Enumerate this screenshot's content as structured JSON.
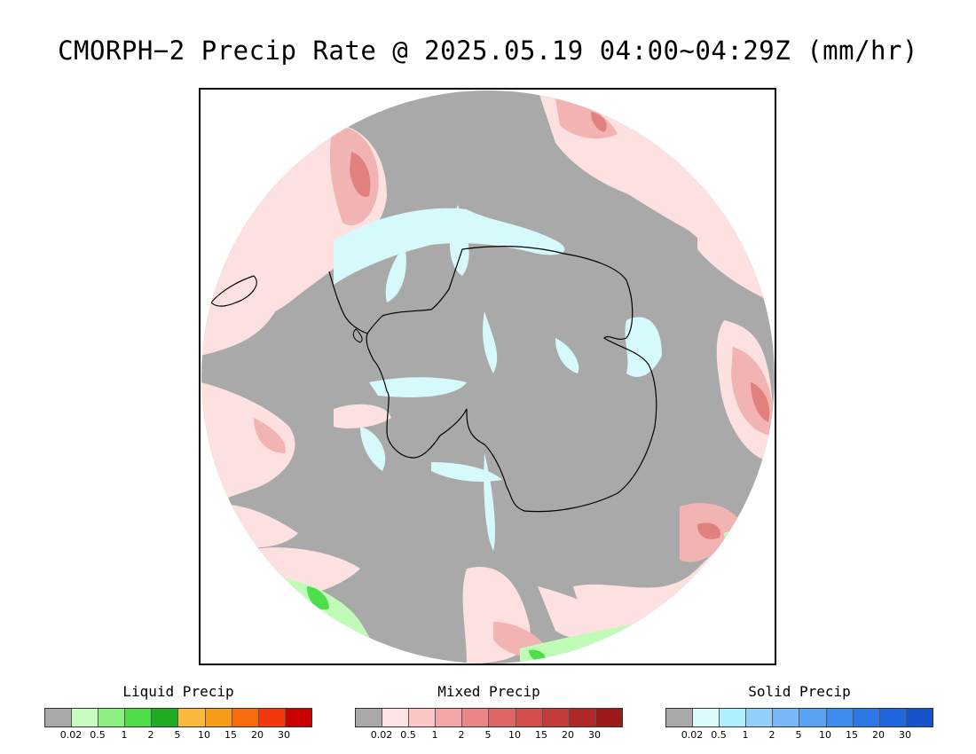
{
  "title": "CMORPH−2 Precip Rate @ 2025.05.19 04:00~04:29Z (mm/hr)",
  "legends": [
    {
      "title": "Liquid Precip",
      "colors": [
        "#a9a9a9",
        "#c8fcc0",
        "#8ef083",
        "#4ede4a",
        "#1fab22",
        "#f8b93c",
        "#f89b1a",
        "#f86c10",
        "#f43a0c",
        "#c80000"
      ],
      "ticks": [
        "0.02",
        "0.5",
        "1",
        "2",
        "5",
        "10",
        "15",
        "20",
        "30"
      ]
    },
    {
      "title": "Mixed Precip",
      "colors": [
        "#a9a9a9",
        "#fde3e3",
        "#fbc6c6",
        "#f4a5a5",
        "#ec8585",
        "#e06666",
        "#d44e4e",
        "#c43b3b",
        "#b02727",
        "#9c1a1a"
      ],
      "ticks": [
        "0.02",
        "0.5",
        "1",
        "2",
        "5",
        "10",
        "15",
        "20",
        "30"
      ]
    },
    {
      "title": "Solid Precip",
      "colors": [
        "#a9a9a9",
        "#dcfcfc",
        "#aef0fa",
        "#92d0fa",
        "#78b8f6",
        "#5aa2f2",
        "#3e8cee",
        "#2e78e6",
        "#1f66dc",
        "#1454c8"
      ],
      "ticks": [
        "0.02",
        "0.5",
        "1",
        "2",
        "5",
        "10",
        "15",
        "20",
        "30"
      ]
    }
  ],
  "map": {
    "projection": "south polar stereographic",
    "colors": {
      "no_precip": "#a9a9a9",
      "mixed_light": "#fde0e0",
      "mixed_mid": "#f2b3b3",
      "mixed_heavy": "#e28080",
      "solid_light": "#d6fafb",
      "liquid_light": "#c0fcb8",
      "liquid_mid": "#4ede4a",
      "coastline": "#000000"
    }
  }
}
